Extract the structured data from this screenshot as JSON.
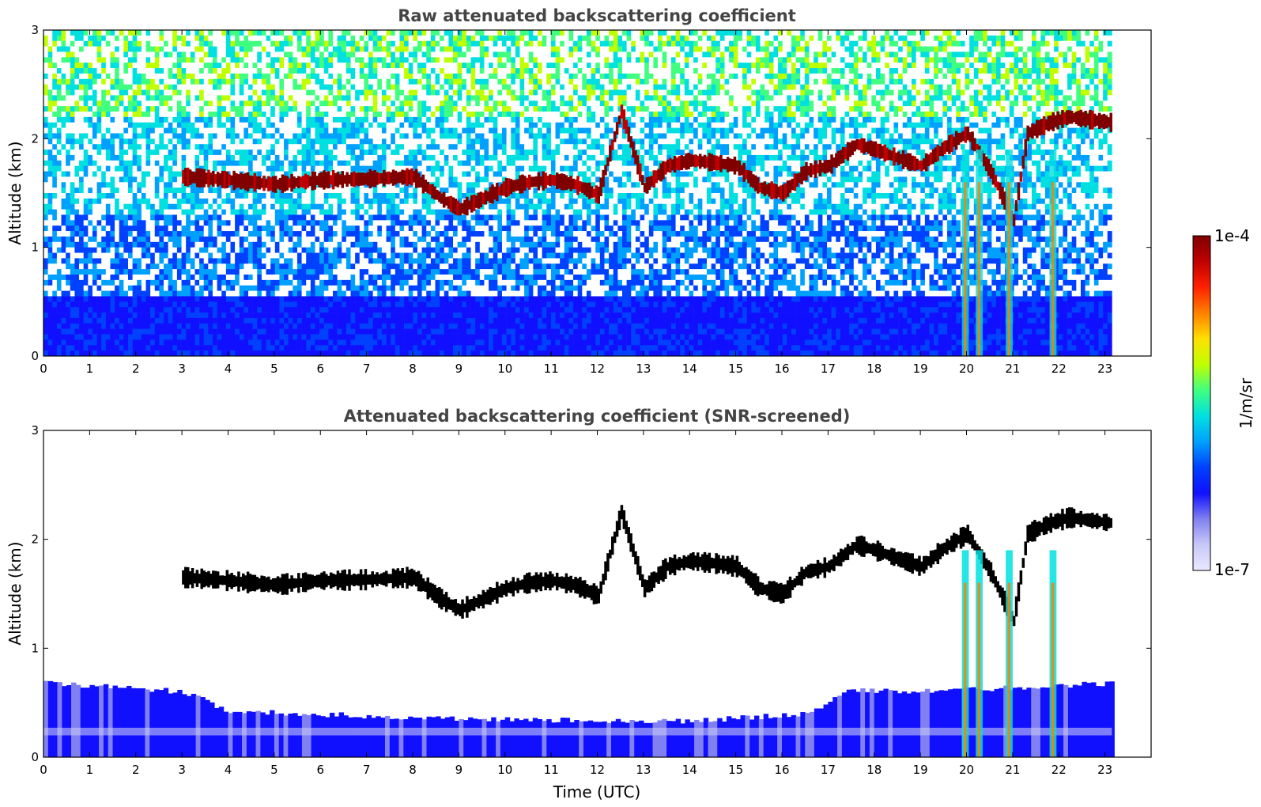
{
  "chart_data": [
    {
      "type": "heatmap",
      "title": "Raw attenuated backscattering coefficient",
      "xlabel": "",
      "ylabel": "Altitude (km)",
      "xlim": [
        0,
        24
      ],
      "ylim": [
        0,
        3
      ],
      "xticks": [
        "0",
        "1",
        "2",
        "3",
        "4",
        "5",
        "6",
        "7",
        "8",
        "9",
        "10",
        "11",
        "12",
        "13",
        "14",
        "15",
        "16",
        "17",
        "18",
        "19",
        "20",
        "21",
        "22",
        "23"
      ],
      "yticks": [
        "0",
        "1",
        "2",
        "3"
      ],
      "data_end_time": 23.15,
      "cloud_base_km": [
        {
          "t": 3.0,
          "z": 1.65
        },
        {
          "t": 4.0,
          "z": 1.62
        },
        {
          "t": 5.0,
          "z": 1.58
        },
        {
          "t": 6.0,
          "z": 1.62
        },
        {
          "t": 7.0,
          "z": 1.63
        },
        {
          "t": 8.0,
          "z": 1.65
        },
        {
          "t": 8.6,
          "z": 1.45
        },
        {
          "t": 9.0,
          "z": 1.35
        },
        {
          "t": 9.5,
          "z": 1.45
        },
        {
          "t": 10.0,
          "z": 1.55
        },
        {
          "t": 10.5,
          "z": 1.6
        },
        {
          "t": 11.0,
          "z": 1.62
        },
        {
          "t": 11.5,
          "z": 1.58
        },
        {
          "t": 12.0,
          "z": 1.48
        },
        {
          "t": 12.5,
          "z": 2.25
        },
        {
          "t": 13.0,
          "z": 1.55
        },
        {
          "t": 13.5,
          "z": 1.75
        },
        {
          "t": 14.0,
          "z": 1.8
        },
        {
          "t": 14.5,
          "z": 1.78
        },
        {
          "t": 15.0,
          "z": 1.75
        },
        {
          "t": 15.5,
          "z": 1.55
        },
        {
          "t": 16.0,
          "z": 1.5
        },
        {
          "t": 16.5,
          "z": 1.7
        },
        {
          "t": 17.0,
          "z": 1.75
        },
        {
          "t": 17.6,
          "z": 1.95
        },
        {
          "t": 18.0,
          "z": 1.9
        },
        {
          "t": 18.5,
          "z": 1.82
        },
        {
          "t": 19.0,
          "z": 1.75
        },
        {
          "t": 19.5,
          "z": 1.92
        },
        {
          "t": 20.0,
          "z": 2.05
        },
        {
          "t": 20.5,
          "z": 1.7
        },
        {
          "t": 21.0,
          "z": 1.25
        },
        {
          "t": 21.3,
          "z": 2.05
        },
        {
          "t": 21.8,
          "z": 2.15
        },
        {
          "t": 22.2,
          "z": 2.2
        },
        {
          "t": 23.1,
          "z": 2.15
        }
      ]
    },
    {
      "type": "heatmap",
      "title": "Attenuated backscattering coefficient (SNR-screened)",
      "xlabel": "Time (UTC)",
      "ylabel": "Altitude (km)",
      "xlim": [
        0,
        24
      ],
      "ylim": [
        0,
        3
      ],
      "xticks": [
        "0",
        "1",
        "2",
        "3",
        "4",
        "5",
        "6",
        "7",
        "8",
        "9",
        "10",
        "11",
        "12",
        "13",
        "14",
        "15",
        "16",
        "17",
        "18",
        "19",
        "20",
        "21",
        "22",
        "23"
      ],
      "yticks": [
        "0",
        "1",
        "2",
        "3"
      ],
      "data_end_time": 23.15,
      "boundary_layer_top_km": [
        {
          "t": 0,
          "z": 0.68
        },
        {
          "t": 3,
          "z": 0.6
        },
        {
          "t": 4,
          "z": 0.42
        },
        {
          "t": 9,
          "z": 0.35
        },
        {
          "t": 14,
          "z": 0.33
        },
        {
          "t": 16.5,
          "z": 0.4
        },
        {
          "t": 17.5,
          "z": 0.62
        },
        {
          "t": 19,
          "z": 0.6
        },
        {
          "t": 23.1,
          "z": 0.68
        }
      ]
    }
  ],
  "colorbar": {
    "label": "1/m/sr",
    "max_label": "1e-4",
    "min_label": "1e-7",
    "scale": "log",
    "colormap": "jet",
    "colors": [
      "#e8e8ff",
      "#c8c8f8",
      "#8080f0",
      "#1010ff",
      "#0040ff",
      "#00a0ff",
      "#00e0e0",
      "#40ff80",
      "#c0ff00",
      "#ffe000",
      "#ff8000",
      "#ff2000",
      "#c00000",
      "#800000"
    ]
  }
}
